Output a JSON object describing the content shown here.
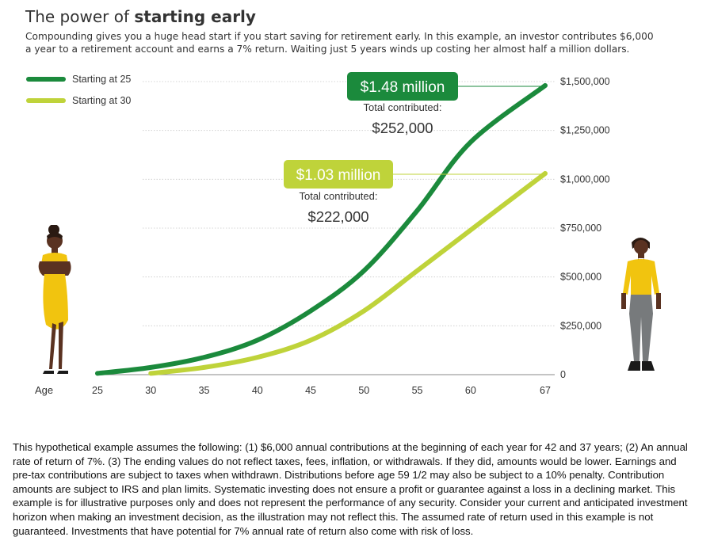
{
  "header": {
    "title_prefix": "The power of ",
    "title_emphasis": "starting early",
    "subtitle": "Compounding gives you a huge head start if you start saving for retirement early. In this example, an investor contributes $6,000 a year to a retirement account and earns a 7% return. Waiting just 5 years winds up costing her almost half a million dollars."
  },
  "chart_data": {
    "type": "line",
    "xlabel": "Age",
    "x_ticks": [
      "25",
      "30",
      "35",
      "40",
      "45",
      "50",
      "55",
      "60",
      "67"
    ],
    "x_tick_values": [
      25,
      30,
      35,
      40,
      45,
      50,
      55,
      60,
      67
    ],
    "y_ticks": [
      "0",
      "$250,000",
      "$500,000",
      "$750,000",
      "$1,000,000",
      "$1,250,000",
      "$1,500,000"
    ],
    "y_tick_values": [
      0,
      250000,
      500000,
      750000,
      1000000,
      1250000,
      1500000
    ],
    "ylim": [
      0,
      1500000
    ],
    "legend_position": "top-left",
    "series": [
      {
        "name": "Starting at 25",
        "color": "#1b8a3c",
        "x": [
          25,
          30,
          35,
          40,
          45,
          50,
          55,
          60,
          67
        ],
        "y": [
          6420,
          36920,
          88720,
          176300,
          326500,
          532000,
          840000,
          1190000,
          1480000
        ]
      },
      {
        "name": "Starting at 30",
        "color": "#bfd33a",
        "x": [
          30,
          35,
          40,
          45,
          50,
          55,
          60,
          67
        ],
        "y": [
          6420,
          36920,
          88720,
          176300,
          326500,
          532000,
          740000,
          1030000
        ]
      }
    ],
    "annotations": [
      {
        "series": 0,
        "value_label": "$1.48 million",
        "contrib_label": "Total contributed:",
        "contrib_value": "$252,000",
        "color": "#1b8a3c"
      },
      {
        "series": 1,
        "value_label": "$1.03 million",
        "contrib_label": "Total contributed:",
        "contrib_value": "$222,000",
        "color": "#bfd33a"
      }
    ]
  },
  "footnote": "This hypothetical example assumes the following: (1) $6,000 annual contributions at the beginning of each year for 42 and 37 years; (2) An annual rate of return of 7%. (3) The ending values do not reflect taxes, fees, inflation, or withdrawals. If they did, amounts would be lower. Earnings and pre-tax contributions are subject to taxes when withdrawn. Distributions before age 59 1/2 may also be subject to a 10% penalty. Contribution amounts are subject to IRS and plan limits. Systematic investing does not ensure a profit or guarantee against a loss in a declining market. This example is for illustrative purposes only and does not represent the performance of any security. Consider your current and anticipated investment horizon when making an investment decision, as the illustration may not reflect this. The assumed rate of return used in this example is not guaranteed. Investments that have potential for 7% annual rate of return also come with risk of loss."
}
